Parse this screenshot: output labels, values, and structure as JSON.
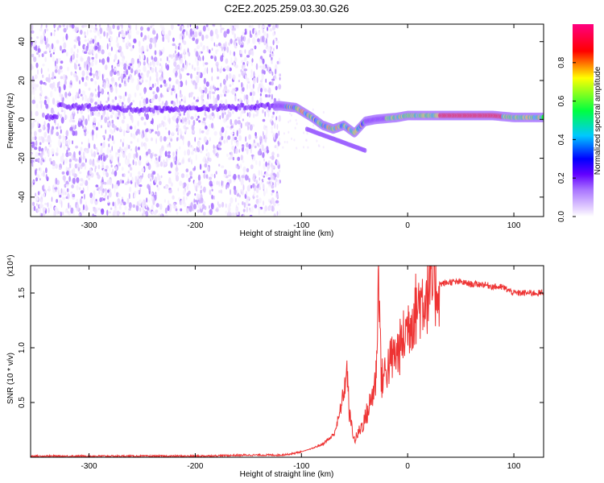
{
  "title": "C2E2.2025.259.03.30.G26",
  "chart_data": [
    {
      "type": "heatmap",
      "xlabel": "Height of straight line (km)",
      "ylabel": "Frequency (Hz)",
      "xlim": [
        -355,
        128
      ],
      "ylim": [
        -50,
        49
      ],
      "xticks": [
        -300,
        -200,
        -100,
        0,
        100
      ],
      "yticks": [
        -40,
        -20,
        0,
        20,
        40
      ],
      "xtick_labels": [
        "-300",
        "-200",
        "-100",
        "0",
        "100"
      ],
      "ytick_labels": [
        "-40",
        "-20",
        "0",
        "20",
        "40"
      ],
      "noise_region": {
        "x_from": -355,
        "x_to": -120,
        "freq_from": -50,
        "freq_to": 49
      },
      "signal_track": [
        {
          "x": -330,
          "freq": 7
        },
        {
          "x": -250,
          "freq": 5
        },
        {
          "x": -180,
          "freq": 6
        },
        {
          "x": -120,
          "freq": 7
        },
        {
          "x": -105,
          "freq": 6
        },
        {
          "x": -90,
          "freq": 1
        },
        {
          "x": -80,
          "freq": -3
        },
        {
          "x": -70,
          "freq": -5
        },
        {
          "x": -60,
          "freq": -3
        },
        {
          "x": -50,
          "freq": -7
        },
        {
          "x": -40,
          "freq": -1
        },
        {
          "x": -30,
          "freq": 0
        },
        {
          "x": -10,
          "freq": 1
        },
        {
          "x": 0,
          "freq": 2
        },
        {
          "x": 20,
          "freq": 2
        },
        {
          "x": 50,
          "freq": 2
        },
        {
          "x": 80,
          "freq": 2
        },
        {
          "x": 100,
          "freq": 1
        },
        {
          "x": 128,
          "freq": 1
        }
      ],
      "colorbar": {
        "label": "Normalized spectral amplitude",
        "range": [
          0.0,
          1.0
        ],
        "ticks": [
          0.0,
          0.2,
          0.4,
          0.6,
          0.8
        ],
        "tick_labels": [
          "0.0",
          "0.2",
          "0.4",
          "0.6",
          "0.8"
        ],
        "colors": [
          "#ffffff",
          "#e6d4ff",
          "#a873ff",
          "#6200ff",
          "#0000ff",
          "#00c8ff",
          "#00ff40",
          "#ffff00",
          "#ff0000",
          "#ff0080"
        ]
      }
    },
    {
      "type": "line",
      "xlabel": "Height of straight line (km)",
      "ylabel": "SNR (10 * v/v)",
      "y_scale_label": "(x10⁴)",
      "xlim": [
        -355,
        128
      ],
      "ylim": [
        0,
        1.75
      ],
      "xticks": [
        -300,
        -200,
        -100,
        0,
        100
      ],
      "yticks": [
        0.5,
        1.0,
        1.5
      ],
      "xtick_labels": [
        "-300",
        "-200",
        "-100",
        "0",
        "100"
      ],
      "ytick_labels": [
        "0.5",
        "1.0",
        "1.5"
      ],
      "color": "#ee3333",
      "series": [
        {
          "name": "SNR",
          "x": [
            -355,
            -300,
            -250,
            -200,
            -150,
            -120,
            -110,
            -100,
            -90,
            -80,
            -70,
            -65,
            -60,
            -57,
            -55,
            -50,
            -45,
            -40,
            -35,
            -30,
            -27,
            -25,
            -20,
            -15,
            -10,
            -5,
            0,
            10,
            20,
            30,
            40,
            50,
            60,
            70,
            80,
            90,
            100,
            110,
            120,
            128
          ],
          "values": [
            0.01,
            0.01,
            0.01,
            0.01,
            0.02,
            0.02,
            0.03,
            0.05,
            0.08,
            0.12,
            0.2,
            0.35,
            0.6,
            0.8,
            0.4,
            0.15,
            0.25,
            0.35,
            0.5,
            0.7,
            1.75,
            0.7,
            0.8,
            0.9,
            0.95,
            1.05,
            1.2,
            1.4,
            1.52,
            1.58,
            1.6,
            1.6,
            1.58,
            1.58,
            1.56,
            1.55,
            1.5,
            1.5,
            1.5,
            1.5
          ]
        }
      ]
    }
  ]
}
